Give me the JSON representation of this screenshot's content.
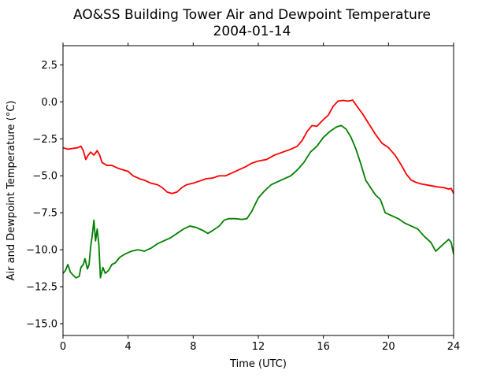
{
  "chart_data": {
    "type": "line",
    "title": "AO&SS Building Tower Air and Dewpoint Temperature",
    "subtitle": "2004-01-14",
    "xlabel": "Time (UTC)",
    "ylabel": "Air and Dewpoint Temperature (°C)",
    "xlim": [
      0,
      24
    ],
    "ylim": [
      -15.8,
      3.8
    ],
    "xticks": [
      0,
      4,
      8,
      12,
      16,
      20,
      24
    ],
    "xtick_labels": [
      "0",
      "4",
      "8",
      "12",
      "16",
      "20",
      "24"
    ],
    "yticks": [
      2.5,
      0.0,
      -2.5,
      -5.0,
      -7.5,
      -10.0,
      -12.5,
      -15.0
    ],
    "ytick_labels": [
      "2.5",
      "0.0",
      "−2.5",
      "−5.0",
      "−7.5",
      "−10.0",
      "−12.5",
      "−15.0"
    ],
    "grid": false,
    "series": [
      {
        "color": "#ff0000",
        "points": [
          [
            0.0,
            -3.1
          ],
          [
            0.3,
            -3.2
          ],
          [
            0.6,
            -3.15
          ],
          [
            0.9,
            -3.1
          ],
          [
            1.1,
            -3.0
          ],
          [
            1.25,
            -3.3
          ],
          [
            1.4,
            -3.9
          ],
          [
            1.55,
            -3.6
          ],
          [
            1.7,
            -3.4
          ],
          [
            1.9,
            -3.6
          ],
          [
            2.1,
            -3.3
          ],
          [
            2.25,
            -3.6
          ],
          [
            2.4,
            -4.1
          ],
          [
            2.7,
            -4.3
          ],
          [
            3.0,
            -4.3
          ],
          [
            3.4,
            -4.5
          ],
          [
            3.7,
            -4.6
          ],
          [
            4.0,
            -4.7
          ],
          [
            4.3,
            -5.0
          ],
          [
            4.7,
            -5.2
          ],
          [
            5.0,
            -5.3
          ],
          [
            5.4,
            -5.5
          ],
          [
            5.8,
            -5.6
          ],
          [
            6.1,
            -5.8
          ],
          [
            6.4,
            -6.1
          ],
          [
            6.7,
            -6.2
          ],
          [
            7.0,
            -6.1
          ],
          [
            7.3,
            -5.8
          ],
          [
            7.6,
            -5.6
          ],
          [
            8.0,
            -5.5
          ],
          [
            8.4,
            -5.35
          ],
          [
            8.8,
            -5.2
          ],
          [
            9.2,
            -5.15
          ],
          [
            9.6,
            -5.0
          ],
          [
            10.0,
            -5.0
          ],
          [
            10.4,
            -4.8
          ],
          [
            10.8,
            -4.6
          ],
          [
            11.2,
            -4.4
          ],
          [
            11.6,
            -4.15
          ],
          [
            12.0,
            -4.0
          ],
          [
            12.5,
            -3.9
          ],
          [
            13.0,
            -3.6
          ],
          [
            13.5,
            -3.4
          ],
          [
            14.0,
            -3.2
          ],
          [
            14.4,
            -3.0
          ],
          [
            14.7,
            -2.6
          ],
          [
            15.0,
            -2.0
          ],
          [
            15.3,
            -1.6
          ],
          [
            15.6,
            -1.65
          ],
          [
            16.0,
            -1.2
          ],
          [
            16.3,
            -0.9
          ],
          [
            16.6,
            -0.3
          ],
          [
            16.9,
            0.05
          ],
          [
            17.2,
            0.1
          ],
          [
            17.5,
            0.05
          ],
          [
            17.8,
            0.12
          ],
          [
            18.0,
            -0.2
          ],
          [
            18.4,
            -0.8
          ],
          [
            18.8,
            -1.5
          ],
          [
            19.2,
            -2.2
          ],
          [
            19.6,
            -2.8
          ],
          [
            20.0,
            -3.1
          ],
          [
            20.4,
            -3.6
          ],
          [
            20.8,
            -4.3
          ],
          [
            21.1,
            -4.9
          ],
          [
            21.4,
            -5.3
          ],
          [
            21.7,
            -5.45
          ],
          [
            22.0,
            -5.55
          ],
          [
            22.5,
            -5.65
          ],
          [
            23.0,
            -5.75
          ],
          [
            23.4,
            -5.8
          ],
          [
            23.7,
            -5.9
          ],
          [
            23.85,
            -5.85
          ],
          [
            24.0,
            -6.2
          ]
        ]
      },
      {
        "color": "#008000",
        "points": [
          [
            0.0,
            -11.6
          ],
          [
            0.15,
            -11.4
          ],
          [
            0.3,
            -11.0
          ],
          [
            0.45,
            -11.5
          ],
          [
            0.6,
            -11.7
          ],
          [
            0.8,
            -11.9
          ],
          [
            1.0,
            -11.8
          ],
          [
            1.1,
            -11.2
          ],
          [
            1.25,
            -11.0
          ],
          [
            1.35,
            -10.6
          ],
          [
            1.5,
            -11.3
          ],
          [
            1.6,
            -11.0
          ],
          [
            1.7,
            -9.8
          ],
          [
            1.8,
            -9.0
          ],
          [
            1.9,
            -8.0
          ],
          [
            2.0,
            -9.4
          ],
          [
            2.1,
            -8.6
          ],
          [
            2.2,
            -9.6
          ],
          [
            2.3,
            -11.9
          ],
          [
            2.45,
            -11.2
          ],
          [
            2.6,
            -11.6
          ],
          [
            2.8,
            -11.4
          ],
          [
            3.0,
            -11.0
          ],
          [
            3.2,
            -10.9
          ],
          [
            3.5,
            -10.5
          ],
          [
            3.8,
            -10.3
          ],
          [
            4.2,
            -10.1
          ],
          [
            4.6,
            -10.0
          ],
          [
            5.0,
            -10.1
          ],
          [
            5.4,
            -9.9
          ],
          [
            5.8,
            -9.6
          ],
          [
            6.2,
            -9.4
          ],
          [
            6.6,
            -9.2
          ],
          [
            7.0,
            -8.9
          ],
          [
            7.4,
            -8.6
          ],
          [
            7.8,
            -8.4
          ],
          [
            8.2,
            -8.5
          ],
          [
            8.6,
            -8.7
          ],
          [
            8.9,
            -8.9
          ],
          [
            9.2,
            -8.7
          ],
          [
            9.6,
            -8.4
          ],
          [
            9.9,
            -8.0
          ],
          [
            10.2,
            -7.9
          ],
          [
            10.6,
            -7.9
          ],
          [
            11.0,
            -7.95
          ],
          [
            11.3,
            -7.9
          ],
          [
            11.6,
            -7.4
          ],
          [
            12.0,
            -6.5
          ],
          [
            12.4,
            -6.0
          ],
          [
            12.8,
            -5.6
          ],
          [
            13.2,
            -5.4
          ],
          [
            13.6,
            -5.2
          ],
          [
            14.0,
            -5.0
          ],
          [
            14.4,
            -4.6
          ],
          [
            14.8,
            -4.1
          ],
          [
            15.2,
            -3.4
          ],
          [
            15.6,
            -3.0
          ],
          [
            16.0,
            -2.4
          ],
          [
            16.4,
            -2.0
          ],
          [
            16.8,
            -1.7
          ],
          [
            17.1,
            -1.6
          ],
          [
            17.4,
            -1.85
          ],
          [
            17.7,
            -2.4
          ],
          [
            18.0,
            -3.2
          ],
          [
            18.3,
            -4.2
          ],
          [
            18.6,
            -5.3
          ],
          [
            18.9,
            -5.8
          ],
          [
            19.2,
            -6.3
          ],
          [
            19.5,
            -6.6
          ],
          [
            19.8,
            -7.5
          ],
          [
            20.2,
            -7.7
          ],
          [
            20.6,
            -7.9
          ],
          [
            21.0,
            -8.2
          ],
          [
            21.4,
            -8.4
          ],
          [
            21.8,
            -8.6
          ],
          [
            22.2,
            -9.1
          ],
          [
            22.6,
            -9.5
          ],
          [
            22.9,
            -10.1
          ],
          [
            23.2,
            -9.8
          ],
          [
            23.5,
            -9.5
          ],
          [
            23.7,
            -9.3
          ],
          [
            23.85,
            -9.5
          ],
          [
            24.0,
            -10.3
          ]
        ]
      }
    ]
  }
}
